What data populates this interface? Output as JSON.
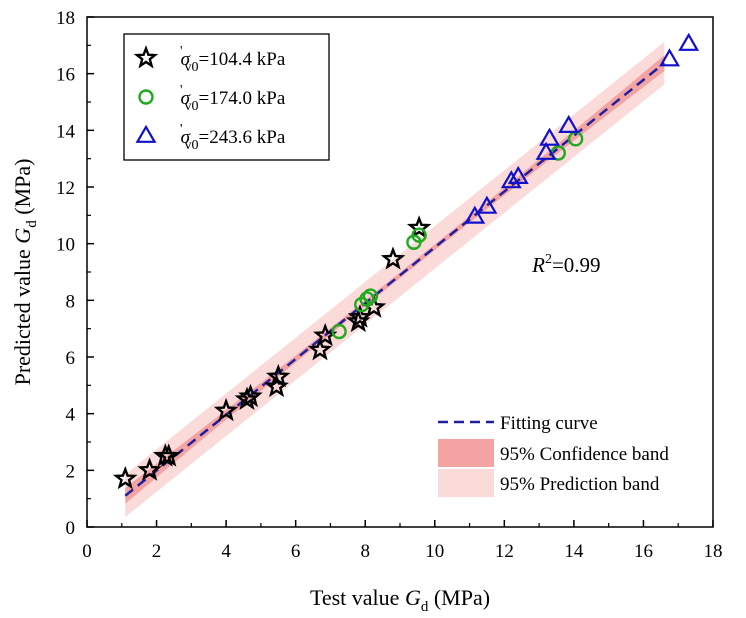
{
  "chart_data": {
    "type": "scatter",
    "xlabel": "Test value G_d (MPa)",
    "ylabel": "Predicted value G_d (MPa)",
    "xlabel_parts": {
      "pre": "Test value ",
      "sym": "G",
      "sub": "d",
      "post": " (MPa)"
    },
    "ylabel_parts": {
      "pre": "Predicted value ",
      "sym": "G",
      "sub": "d",
      "post": " (MPa)"
    },
    "xlim": [
      0,
      18
    ],
    "ylim": [
      0,
      18
    ],
    "xticks": [
      0,
      2,
      4,
      6,
      8,
      10,
      12,
      14,
      16,
      18
    ],
    "yticks": [
      0,
      2,
      4,
      6,
      8,
      10,
      12,
      14,
      16,
      18
    ],
    "grid": false,
    "annotation": {
      "sym": "R",
      "sup": "2",
      "text": "=0.99",
      "x": 12.8,
      "y": 9.0
    },
    "series_legend_position": "top-left",
    "band_legend_position": "bottom-right",
    "series": [
      {
        "name": "σ'v0=104.4 kPa",
        "legend_value": "=104.4 kPa",
        "marker": "star",
        "color": "#000000",
        "points": [
          [
            1.1,
            1.7
          ],
          [
            1.8,
            2.0
          ],
          [
            2.25,
            2.5
          ],
          [
            2.35,
            2.5
          ],
          [
            4.0,
            4.1
          ],
          [
            4.6,
            4.5
          ],
          [
            4.7,
            4.6
          ],
          [
            5.45,
            4.95
          ],
          [
            5.5,
            5.3
          ],
          [
            6.7,
            6.25
          ],
          [
            6.85,
            6.75
          ],
          [
            7.8,
            7.25
          ],
          [
            7.85,
            7.4
          ],
          [
            8.25,
            7.75
          ],
          [
            8.8,
            9.45
          ],
          [
            9.55,
            10.55
          ]
        ]
      },
      {
        "name": "σ'v0=174.0 kPa",
        "legend_value": "=174.0 kPa",
        "marker": "circle",
        "color": "#1faa1f",
        "points": [
          [
            7.25,
            6.9
          ],
          [
            7.9,
            7.85
          ],
          [
            8.05,
            8.05
          ],
          [
            8.15,
            8.15
          ],
          [
            9.4,
            10.05
          ],
          [
            9.55,
            10.3
          ],
          [
            13.55,
            13.2
          ],
          [
            14.05,
            13.7
          ]
        ]
      },
      {
        "name": "σ'v0=243.6 kPa",
        "legend_value": "=243.6 kPa",
        "marker": "triangle",
        "color": "#1010cc",
        "points": [
          [
            11.15,
            10.95
          ],
          [
            11.5,
            11.3
          ],
          [
            12.2,
            12.2
          ],
          [
            12.4,
            12.35
          ],
          [
            13.2,
            13.2
          ],
          [
            13.3,
            13.7
          ],
          [
            13.85,
            14.15
          ],
          [
            16.75,
            16.5
          ],
          [
            17.3,
            17.05
          ]
        ]
      }
    ],
    "fit": {
      "name": "Fitting curve",
      "x_range": [
        1.1,
        16.6
      ],
      "slope": 0.985,
      "intercept": 0.02,
      "color": "#1f1fa0"
    },
    "confidence_band": {
      "name": "95% Confidence band",
      "halfwidth_ends": 0.28,
      "halfwidth_mid": 0.1,
      "color": "#f4a3a3"
    },
    "prediction_band": {
      "name": "95% Prediction band",
      "halfwidth": 0.75,
      "color": "#fbdada"
    }
  }
}
